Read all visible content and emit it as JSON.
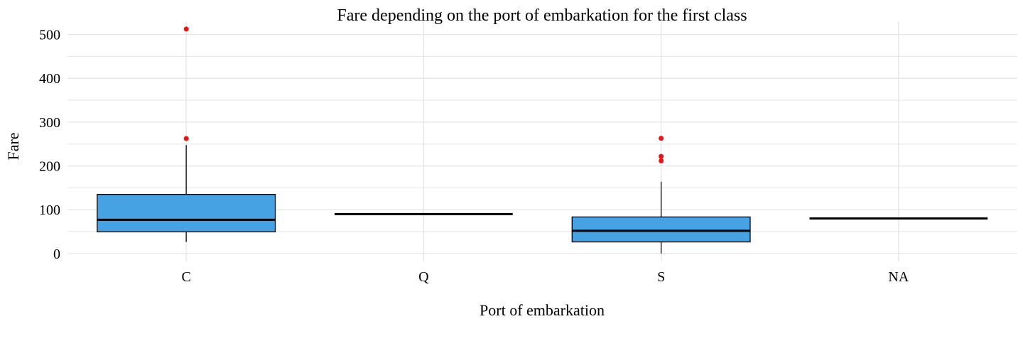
{
  "chart_data": {
    "type": "boxplot",
    "title": "Fare depending on the port of embarkation for the first class",
    "xlabel": "Port of embarkation",
    "ylabel": "Fare",
    "categories": [
      "C",
      "Q",
      "S",
      "NA"
    ],
    "ylim": [
      -18,
      530
    ],
    "yticks": [
      0,
      100,
      200,
      300,
      400,
      500
    ],
    "grid": true,
    "colors": {
      "box_fill": "#46A2E2",
      "outlier": "#EE1111",
      "grid": "#E5E5E5",
      "stroke": "#000000"
    },
    "boxes": [
      {
        "category": "C",
        "min": 26.5,
        "q1": 49.5,
        "median": 77,
        "q3": 135,
        "max": 247.5,
        "outliers": [
          512.3,
          262.4
        ]
      },
      {
        "category": "Q",
        "min": 90,
        "q1": 90,
        "median": 90,
        "q3": 90,
        "max": 90,
        "outliers": []
      },
      {
        "category": "S",
        "min": 0,
        "q1": 26.5,
        "median": 52,
        "q3": 83.5,
        "max": 164,
        "outliers": [
          263,
          221.8,
          211.5
        ]
      },
      {
        "category": "NA",
        "min": 80,
        "q1": 80,
        "median": 80,
        "q3": 80,
        "max": 80,
        "outliers": []
      }
    ]
  }
}
